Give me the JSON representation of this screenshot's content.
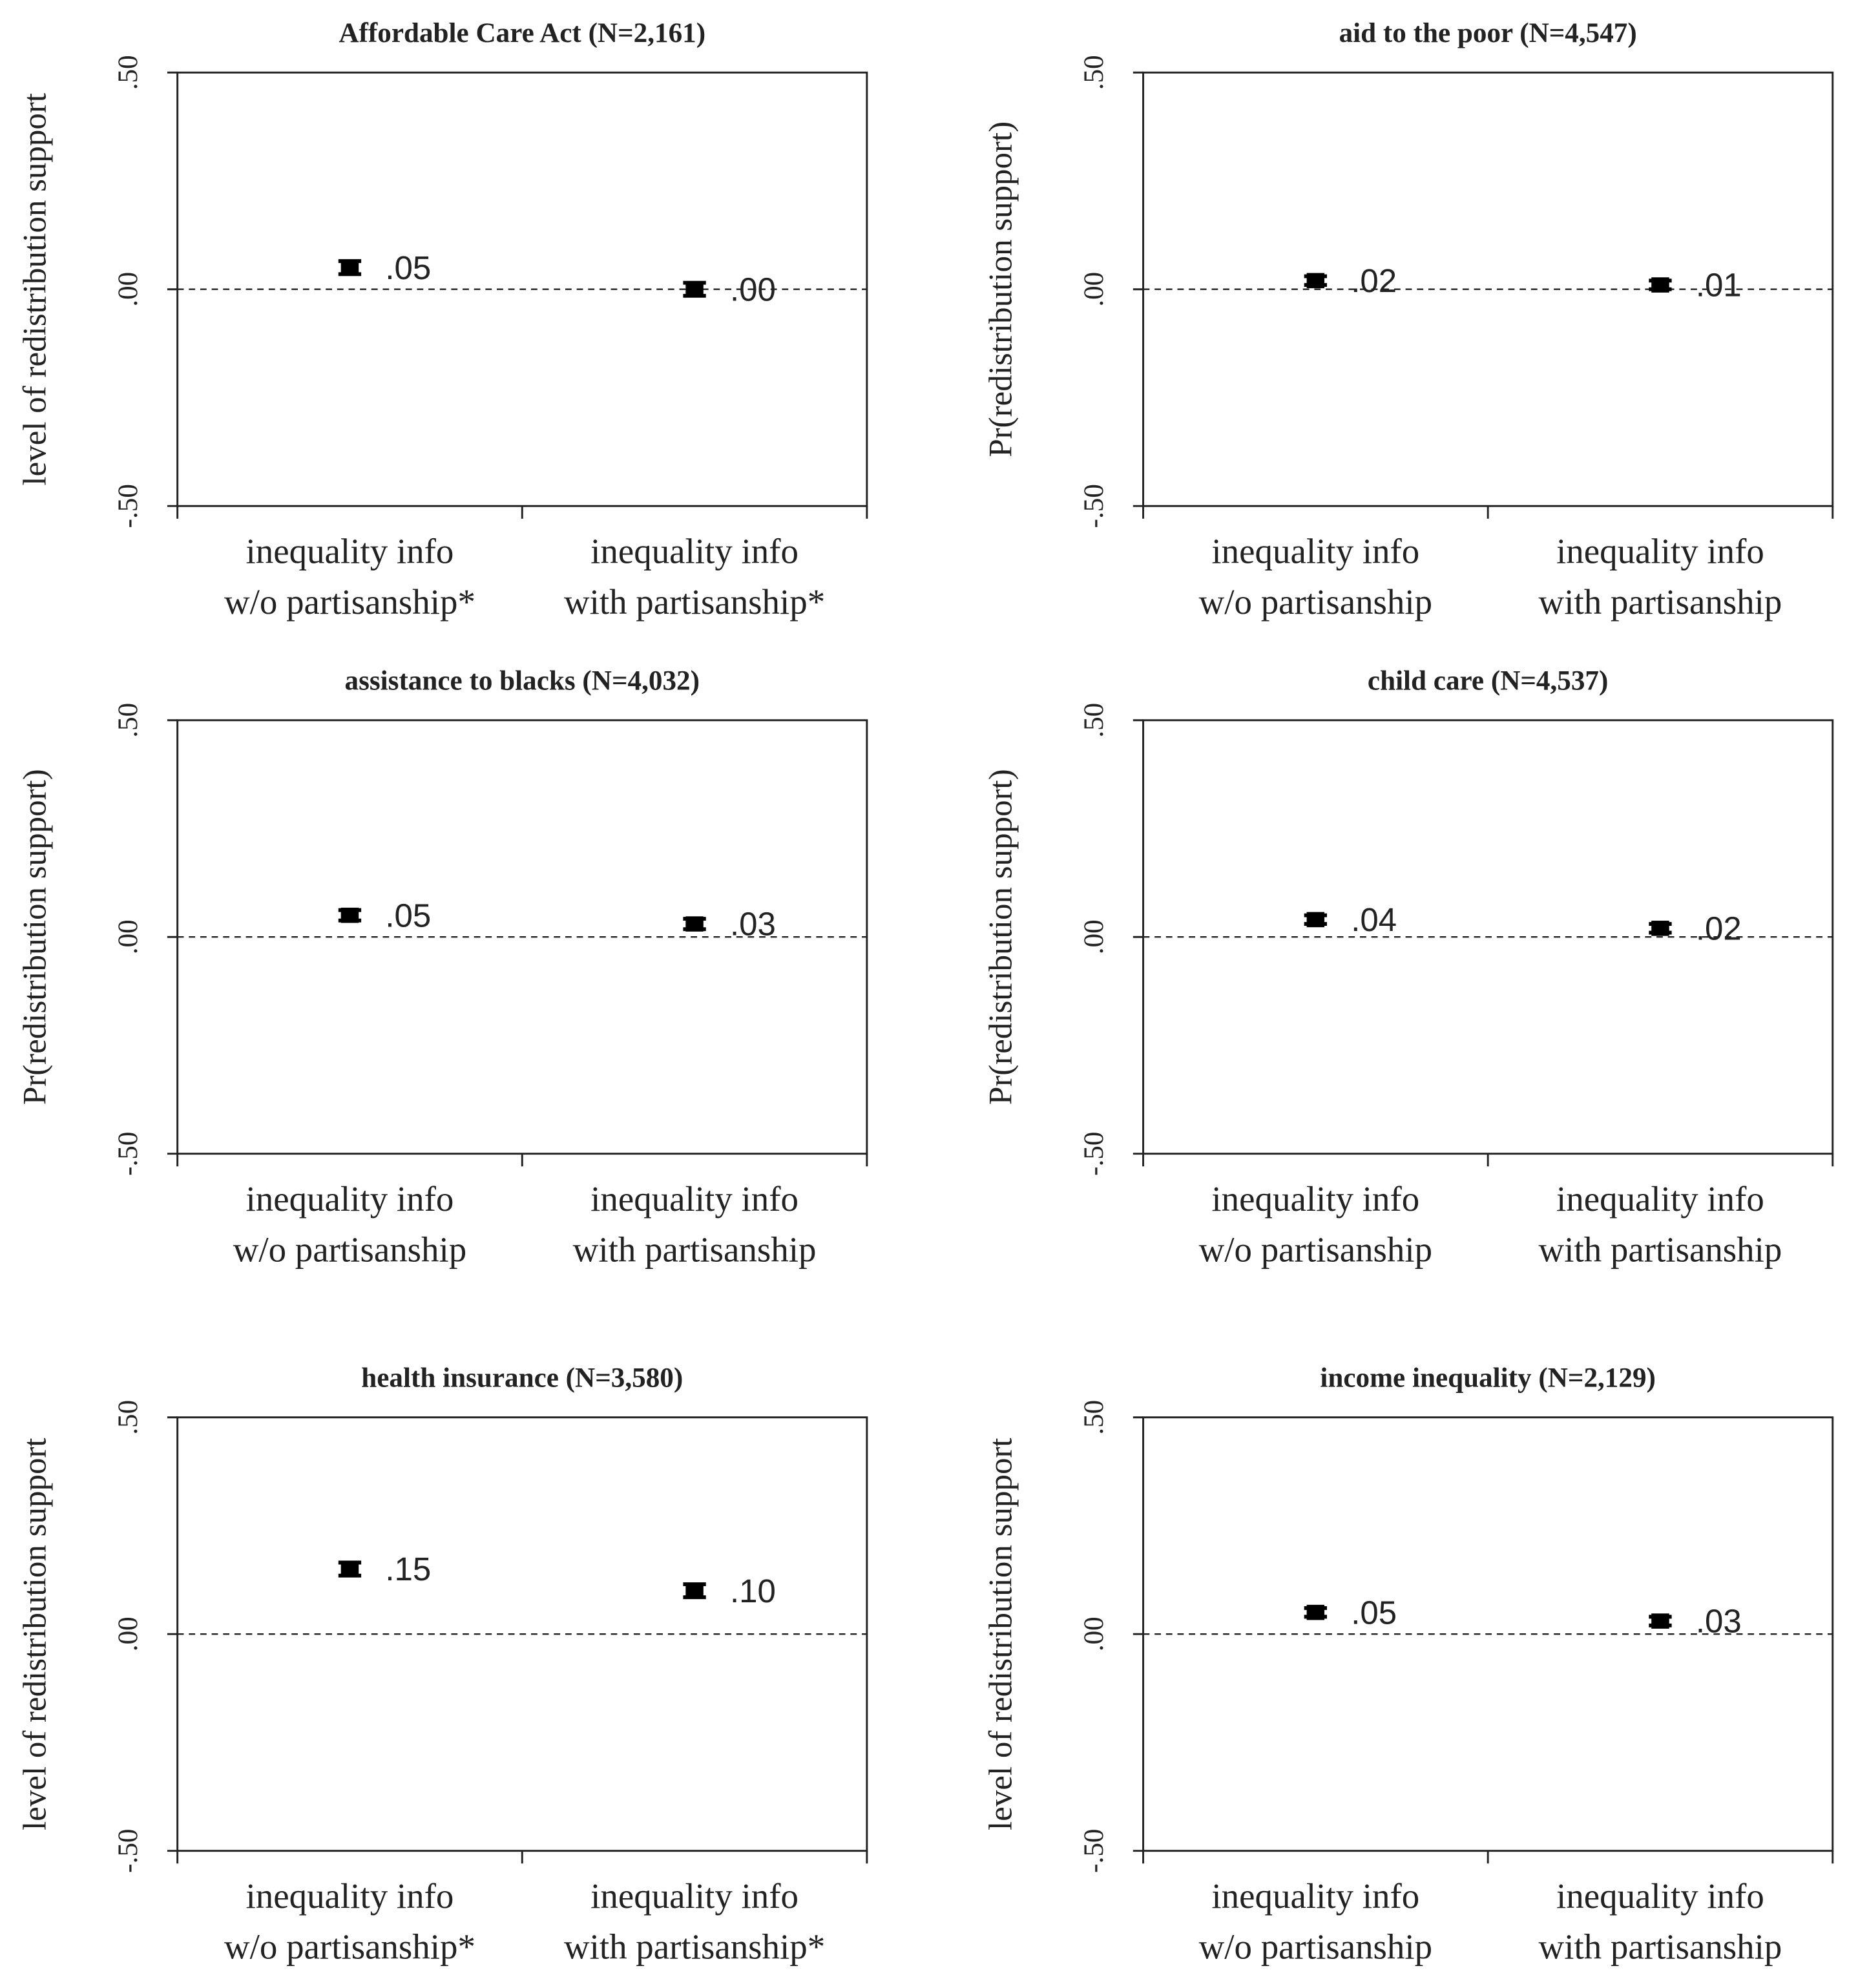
{
  "chart_data": [
    {
      "type": "point",
      "title": "Affordable Care Act (N=2,161)",
      "y_label": "level of redistribution support",
      "categories": [
        "inequality info\nw/o partisanship*",
        "inequality info\nwith partisanship*"
      ],
      "values": [
        0.05,
        0.0
      ],
      "errors": [
        0.015,
        0.015
      ],
      "value_labels": [
        ".05",
        ".00"
      ],
      "ylim": [
        -0.5,
        0.5
      ],
      "yticks": [
        {
          "value": -0.5,
          "label": "-.50"
        },
        {
          "value": 0,
          "label": ".00"
        },
        {
          "value": 0.5,
          "label": ".50"
        }
      ],
      "reference_line": 0,
      "color": "#000000"
    },
    {
      "type": "point",
      "title": "aid to the poor (N=4,547)",
      "y_label": "Pr(redistribution support)",
      "categories": [
        "inequality info\nw/o partisanship",
        "inequality info\nwith partisanship"
      ],
      "values": [
        0.02,
        0.01
      ],
      "errors": [
        0.01,
        0.01
      ],
      "value_labels": [
        ".02",
        ".01"
      ],
      "ylim": [
        -0.5,
        0.5
      ],
      "yticks": [
        {
          "value": -0.5,
          "label": "-.50"
        },
        {
          "value": 0,
          "label": ".00"
        },
        {
          "value": 0.5,
          "label": ".50"
        }
      ],
      "reference_line": 0,
      "color": "#000000"
    },
    {
      "type": "point",
      "title": "assistance to blacks (N=4,032)",
      "y_label": "Pr(redistribution support)",
      "categories": [
        "inequality info\nw/o partisanship",
        "inequality info\nwith partisanship"
      ],
      "values": [
        0.05,
        0.03
      ],
      "errors": [
        0.012,
        0.012
      ],
      "value_labels": [
        ".05",
        ".03"
      ],
      "ylim": [
        -0.5,
        0.5
      ],
      "yticks": [
        {
          "value": -0.5,
          "label": "-.50"
        },
        {
          "value": 0,
          "label": ".00"
        },
        {
          "value": 0.5,
          "label": ".50"
        }
      ],
      "reference_line": 0,
      "color": "#000000"
    },
    {
      "type": "point",
      "title": "child care (N=4,537)",
      "y_label": "Pr(redistribution support)",
      "categories": [
        "inequality info\nw/o partisanship",
        "inequality info\nwith partisanship"
      ],
      "values": [
        0.04,
        0.02
      ],
      "errors": [
        0.01,
        0.01
      ],
      "value_labels": [
        ".04",
        ".02"
      ],
      "ylim": [
        -0.5,
        0.5
      ],
      "yticks": [
        {
          "value": -0.5,
          "label": "-.50"
        },
        {
          "value": 0,
          "label": ".00"
        },
        {
          "value": 0.5,
          "label": ".50"
        }
      ],
      "reference_line": 0,
      "color": "#000000"
    },
    {
      "type": "point",
      "title": "health insurance (N=3,580)",
      "y_label": "level of redistribution support",
      "categories": [
        "inequality info\nw/o partisanship*",
        "inequality info\nwith partisanship*"
      ],
      "values": [
        0.15,
        0.1
      ],
      "errors": [
        0.015,
        0.015
      ],
      "value_labels": [
        ".15",
        ".10"
      ],
      "ylim": [
        -0.5,
        0.5
      ],
      "yticks": [
        {
          "value": -0.5,
          "label": "-.50"
        },
        {
          "value": 0,
          "label": ".00"
        },
        {
          "value": 0.5,
          "label": ".50"
        }
      ],
      "reference_line": 0,
      "color": "#000000"
    },
    {
      "type": "point",
      "title": "income inequality (N=2,129)",
      "y_label": "level of redistribution support",
      "categories": [
        "inequality info\nw/o partisanship",
        "inequality info\nwith partisanship"
      ],
      "values": [
        0.05,
        0.03
      ],
      "errors": [
        0.01,
        0.01
      ],
      "value_labels": [
        ".05",
        ".03"
      ],
      "ylim": [
        -0.5,
        0.5
      ],
      "yticks": [
        {
          "value": -0.5,
          "label": "-.50"
        },
        {
          "value": 0,
          "label": ".00"
        },
        {
          "value": 0.5,
          "label": ".50"
        }
      ],
      "reference_line": 0,
      "color": "#000000"
    }
  ]
}
